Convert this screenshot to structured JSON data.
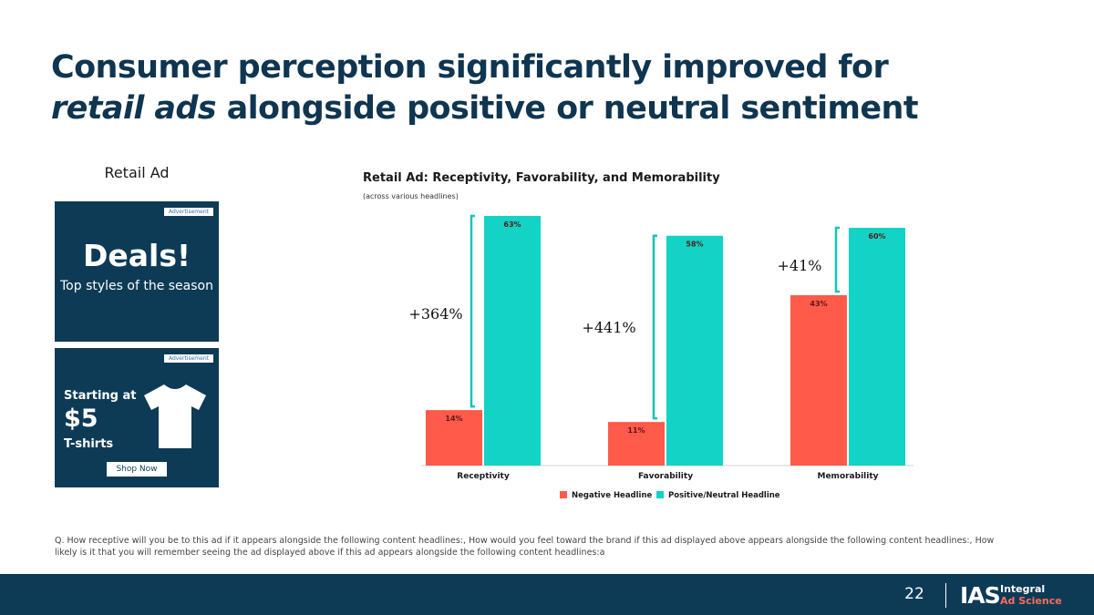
{
  "slide": {
    "title_line1": "Consumer perception significantly improved for",
    "title_em": "retail ads",
    "title_line2_rest": " alongside positive or neutral sentiment",
    "page_number": "22"
  },
  "ad_panel": {
    "label": "Retail Ad",
    "ad1": {
      "tag": "Advertisement",
      "headline": "Deals!",
      "sub": "Top styles of the season"
    },
    "ad2": {
      "tag": "Advertisement",
      "starting": "Starting at",
      "price": "$5",
      "product": "T-shirts",
      "button": "Shop Now",
      "icon": "tshirt-icon"
    }
  },
  "chart_data": {
    "type": "bar",
    "title": "Retail Ad: Receptivity, Favorability, and Memorability",
    "subtitle": "(across various headlines)",
    "categories": [
      "Receptivity",
      "Favorability",
      "Memorability"
    ],
    "series": [
      {
        "name": "Negative Headline",
        "color": "#ff5a4a",
        "values": [
          14,
          11,
          43
        ],
        "labels": [
          "14%",
          "11%",
          "43%"
        ]
      },
      {
        "name": "Positive/Neutral Headline",
        "color": "#12d3c6",
        "values": [
          63,
          58,
          60
        ],
        "labels": [
          "63%",
          "58%",
          "60%"
        ]
      }
    ],
    "annotations": [
      "+364%",
      "+441%",
      "+41%"
    ],
    "ylim": [
      0,
      63
    ],
    "legend_position": "bottom",
    "grid": false
  },
  "footnote": "Q. How receptive will you be to this ad if it appears alongside the following content headlines:, How would you feel toward the brand if this ad displayed above appears alongside the following content headlines:, How likely is it that you will remember seeing the ad displayed above if this ad appears alongside the following content headlines:a",
  "footer": {
    "logo_mark": "IAS",
    "logo_line1": "Integral",
    "logo_line2": "Ad Science"
  }
}
